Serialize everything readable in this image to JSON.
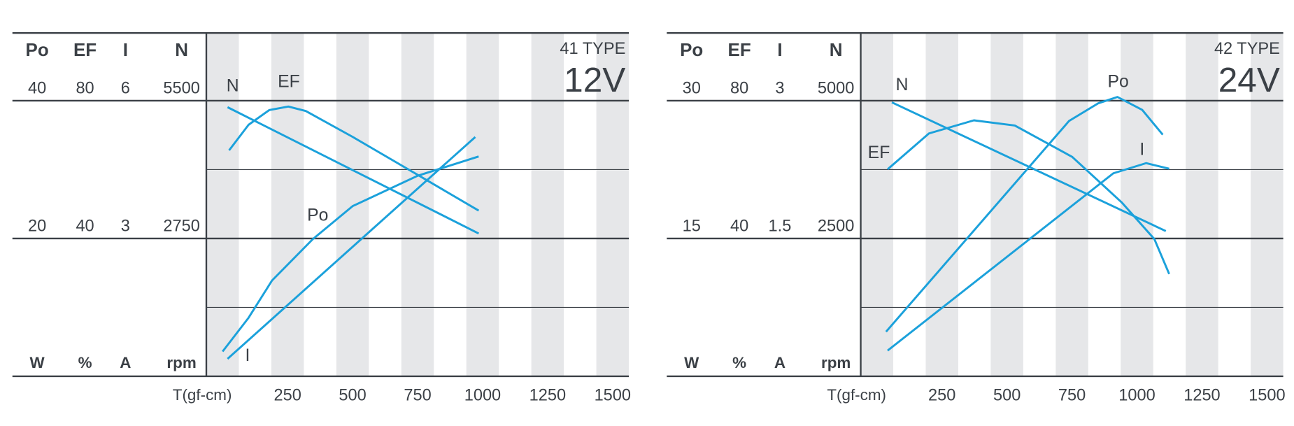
{
  "chart_data": [
    {
      "type": "line",
      "title": "41 TYPE",
      "subtitle": "12V",
      "x_label": "T(gf-cm)",
      "xlim": [
        -62.5,
        1562.5
      ],
      "xticks": [
        250,
        500,
        750,
        1000,
        1250,
        1500
      ],
      "axes": [
        {
          "name": "Po",
          "unit": "W",
          "ylim": [
            0,
            40
          ],
          "yticks": [
            20,
            40
          ]
        },
        {
          "name": "EF",
          "unit": "%",
          "ylim": [
            0,
            80
          ],
          "yticks": [
            40,
            80
          ]
        },
        {
          "name": "I",
          "unit": "A",
          "ylim": [
            0,
            6
          ],
          "yticks": [
            3,
            6
          ]
        },
        {
          "name": "N",
          "unit": "rpm",
          "ylim": [
            0,
            5500
          ],
          "yticks": [
            2750,
            5500
          ]
        }
      ],
      "series": [
        {
          "name": "N",
          "axis": 3,
          "color": "#1ba1db",
          "x": [
            19,
            985
          ],
          "values": [
            5370,
            2850
          ]
        },
        {
          "name": "EF",
          "axis": 1,
          "color": "#1ba1db",
          "x": [
            25,
            100,
            180,
            253,
            320,
            500,
            750,
            985
          ],
          "values": [
            65.6,
            73,
            77.3,
            78.3,
            77,
            69.5,
            58.5,
            48.1
          ]
        },
        {
          "name": "Po",
          "axis": 0,
          "color": "#1ba1db",
          "x": [
            0,
            100,
            190,
            347,
            500,
            750,
            985
          ],
          "values": [
            3.6,
            8.5,
            13.9,
            19.9,
            24.7,
            29.1,
            31.9
          ]
        },
        {
          "name": "I",
          "axis": 2,
          "color": "#1ba1db",
          "x": [
            19,
            972
          ],
          "values": [
            0.38,
            5.21
          ]
        }
      ]
    },
    {
      "type": "line",
      "title": "42 TYPE",
      "subtitle": "24V",
      "x_label": "T(gf-cm)",
      "xlim": [
        -62.5,
        1562.5
      ],
      "xticks": [
        250,
        500,
        750,
        1000,
        1250,
        1500
      ],
      "axes": [
        {
          "name": "Po",
          "unit": "W",
          "ylim": [
            0,
            30
          ],
          "yticks": [
            15,
            30
          ]
        },
        {
          "name": "EF",
          "unit": "%",
          "ylim": [
            0,
            80
          ],
          "yticks": [
            40,
            80
          ]
        },
        {
          "name": "I",
          "unit": "A",
          "ylim": [
            0,
            3
          ],
          "yticks": [
            1.5,
            3
          ]
        },
        {
          "name": "N",
          "unit": "rpm",
          "ylim": [
            0,
            5000
          ],
          "yticks": [
            2500,
            5000
          ]
        }
      ],
      "series": [
        {
          "name": "N",
          "axis": 3,
          "color": "#1ba1db",
          "x": [
            57,
            1111
          ],
          "values": [
            4970,
            2635
          ]
        },
        {
          "name": "EF",
          "axis": 1,
          "color": "#1ba1db",
          "x": [
            41,
            200,
            373,
            530,
            751,
            941,
            1067,
            1124
          ],
          "values": [
            60.1,
            70.5,
            74.3,
            72.8,
            63.7,
            50.5,
            39.8,
            29.7
          ]
        },
        {
          "name": "Po",
          "axis": 0,
          "color": "#1ba1db",
          "x": [
            35,
            739,
            850,
            925,
            1020,
            1099
          ],
          "values": [
            4.85,
            27.8,
            29.7,
            30.4,
            29.0,
            26.3
          ]
        },
        {
          "name": "I",
          "axis": 2,
          "color": "#1ba1db",
          "x": [
            41,
            909,
            1035,
            1124
          ],
          "values": [
            0.28,
            2.21,
            2.32,
            2.26
          ]
        }
      ]
    }
  ]
}
